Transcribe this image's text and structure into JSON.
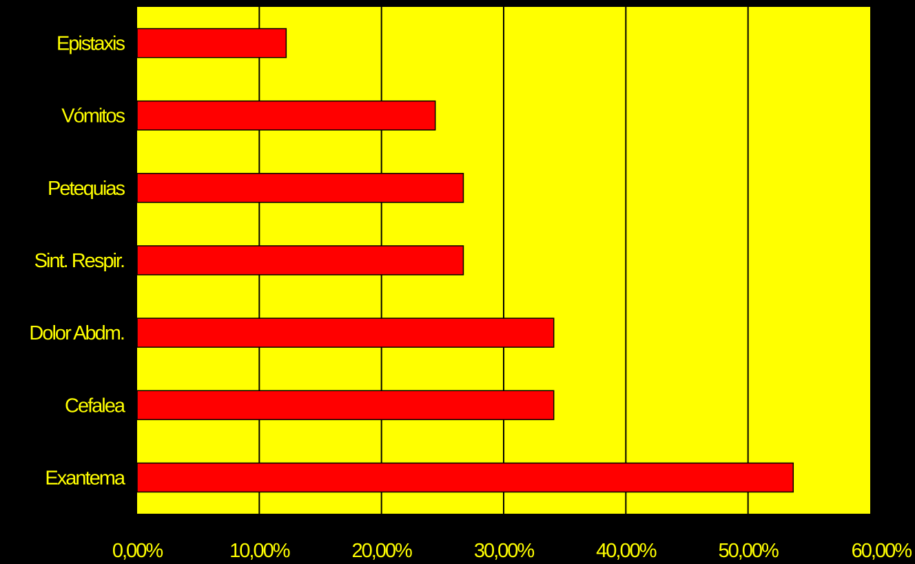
{
  "chart_data": {
    "type": "bar",
    "orientation": "horizontal",
    "categories": [
      "Epistaxis",
      "Vómitos",
      "Petequias",
      "Sint. Respir.",
      "Dolor Abdm.",
      "Cefalea",
      "Exantema"
    ],
    "values": [
      12.2,
      24.4,
      26.7,
      26.7,
      34.1,
      34.1,
      53.7
    ],
    "xlim": [
      0,
      60
    ],
    "x_ticks": [
      0,
      10,
      20,
      30,
      40,
      50,
      60
    ],
    "x_tick_labels": [
      "0,00%",
      "10,00%",
      "20,00%",
      "30,00%",
      "40,00%",
      "50,00%",
      "60,00%"
    ],
    "grid": "vertical",
    "legend": "none",
    "title": "",
    "xlabel": "",
    "ylabel": ""
  },
  "colors": {
    "background": "#000000",
    "plot_area": "#FFFF00",
    "bar_fill": "#FF0000",
    "bar_stroke": "#000000",
    "gridline": "#000000",
    "text": "#FFFF00"
  }
}
